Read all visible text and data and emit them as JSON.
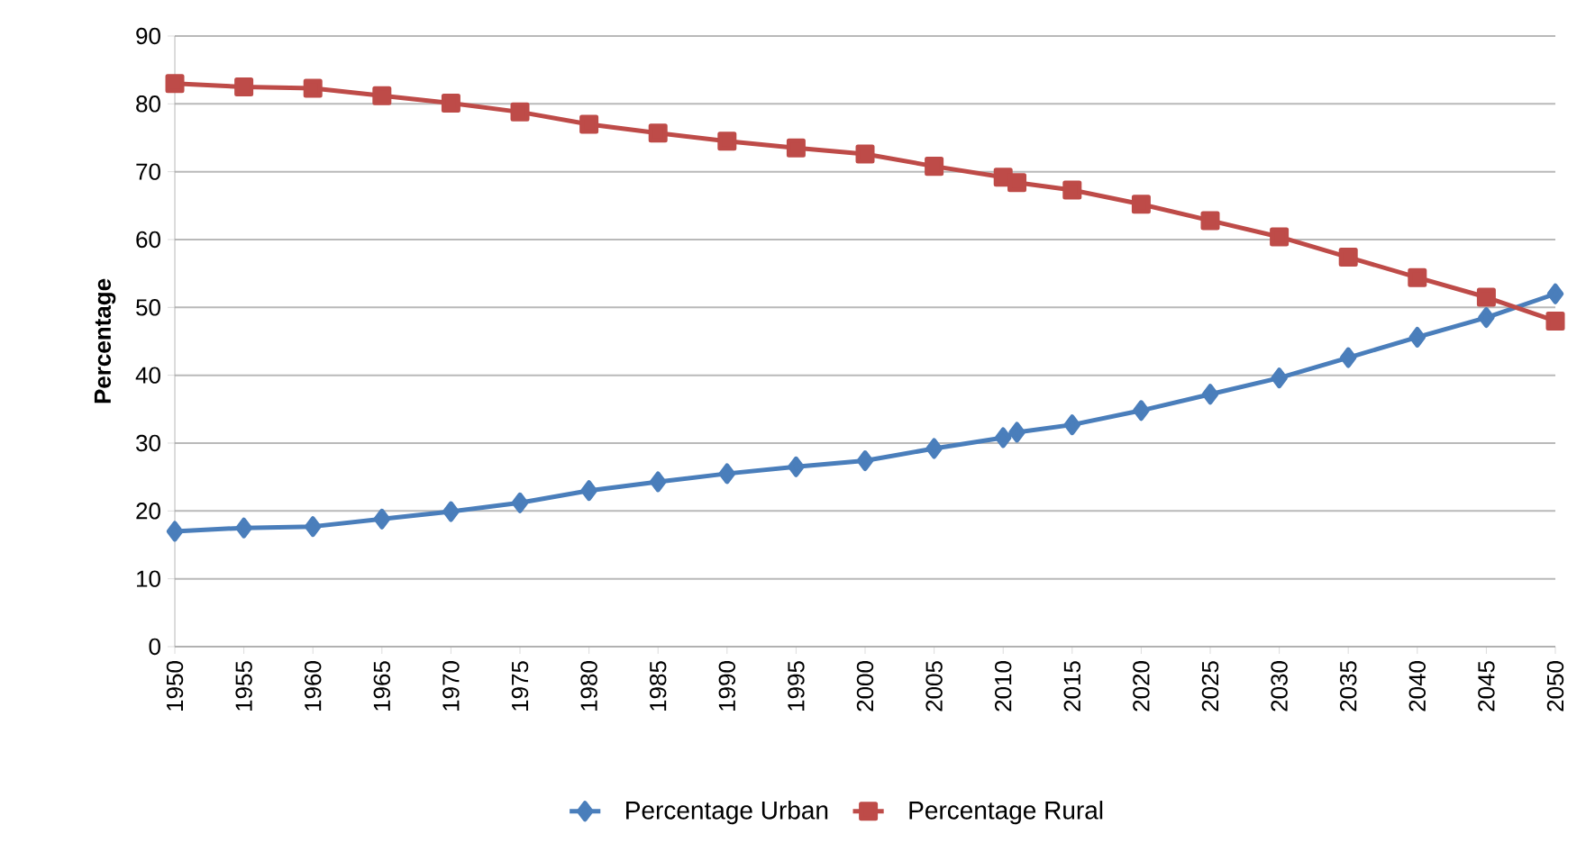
{
  "chart_data": {
    "type": "line",
    "ylabel": "Percentage",
    "x": [
      1950,
      1955,
      1960,
      1965,
      1970,
      1975,
      1980,
      1985,
      1990,
      1995,
      2000,
      2005,
      2010,
      2011,
      2015,
      2020,
      2025,
      2030,
      2035,
      2040,
      2045,
      2050
    ],
    "series": [
      {
        "name": "Percentage Urban",
        "color": "#4a7ebb",
        "marker": "diamond",
        "values": [
          17.0,
          17.5,
          17.7,
          18.8,
          19.9,
          21.2,
          23.0,
          24.3,
          25.5,
          26.5,
          27.4,
          29.2,
          30.8,
          31.6,
          32.7,
          34.8,
          37.2,
          39.6,
          42.6,
          45.6,
          48.5,
          52.0
        ]
      },
      {
        "name": "Percentage Rural",
        "color": "#be4b48",
        "marker": "square",
        "values": [
          83.0,
          82.5,
          82.3,
          81.2,
          80.1,
          78.8,
          77.0,
          75.7,
          74.5,
          73.5,
          72.6,
          70.8,
          69.2,
          68.4,
          67.3,
          65.2,
          62.8,
          60.4,
          57.4,
          54.4,
          51.5,
          48.0
        ]
      }
    ],
    "xlim": [
      1950,
      2050
    ],
    "xticks": [
      1950,
      1955,
      1960,
      1965,
      1970,
      1975,
      1980,
      1985,
      1990,
      1995,
      2000,
      2005,
      2010,
      2015,
      2020,
      2025,
      2030,
      2035,
      2040,
      2045,
      2050
    ],
    "ylim": [
      0,
      90
    ],
    "yticks": [
      0,
      10,
      20,
      30,
      40,
      50,
      60,
      70,
      80,
      90
    ],
    "grid": "y",
    "legend": "bottom",
    "line_style": "solid"
  }
}
